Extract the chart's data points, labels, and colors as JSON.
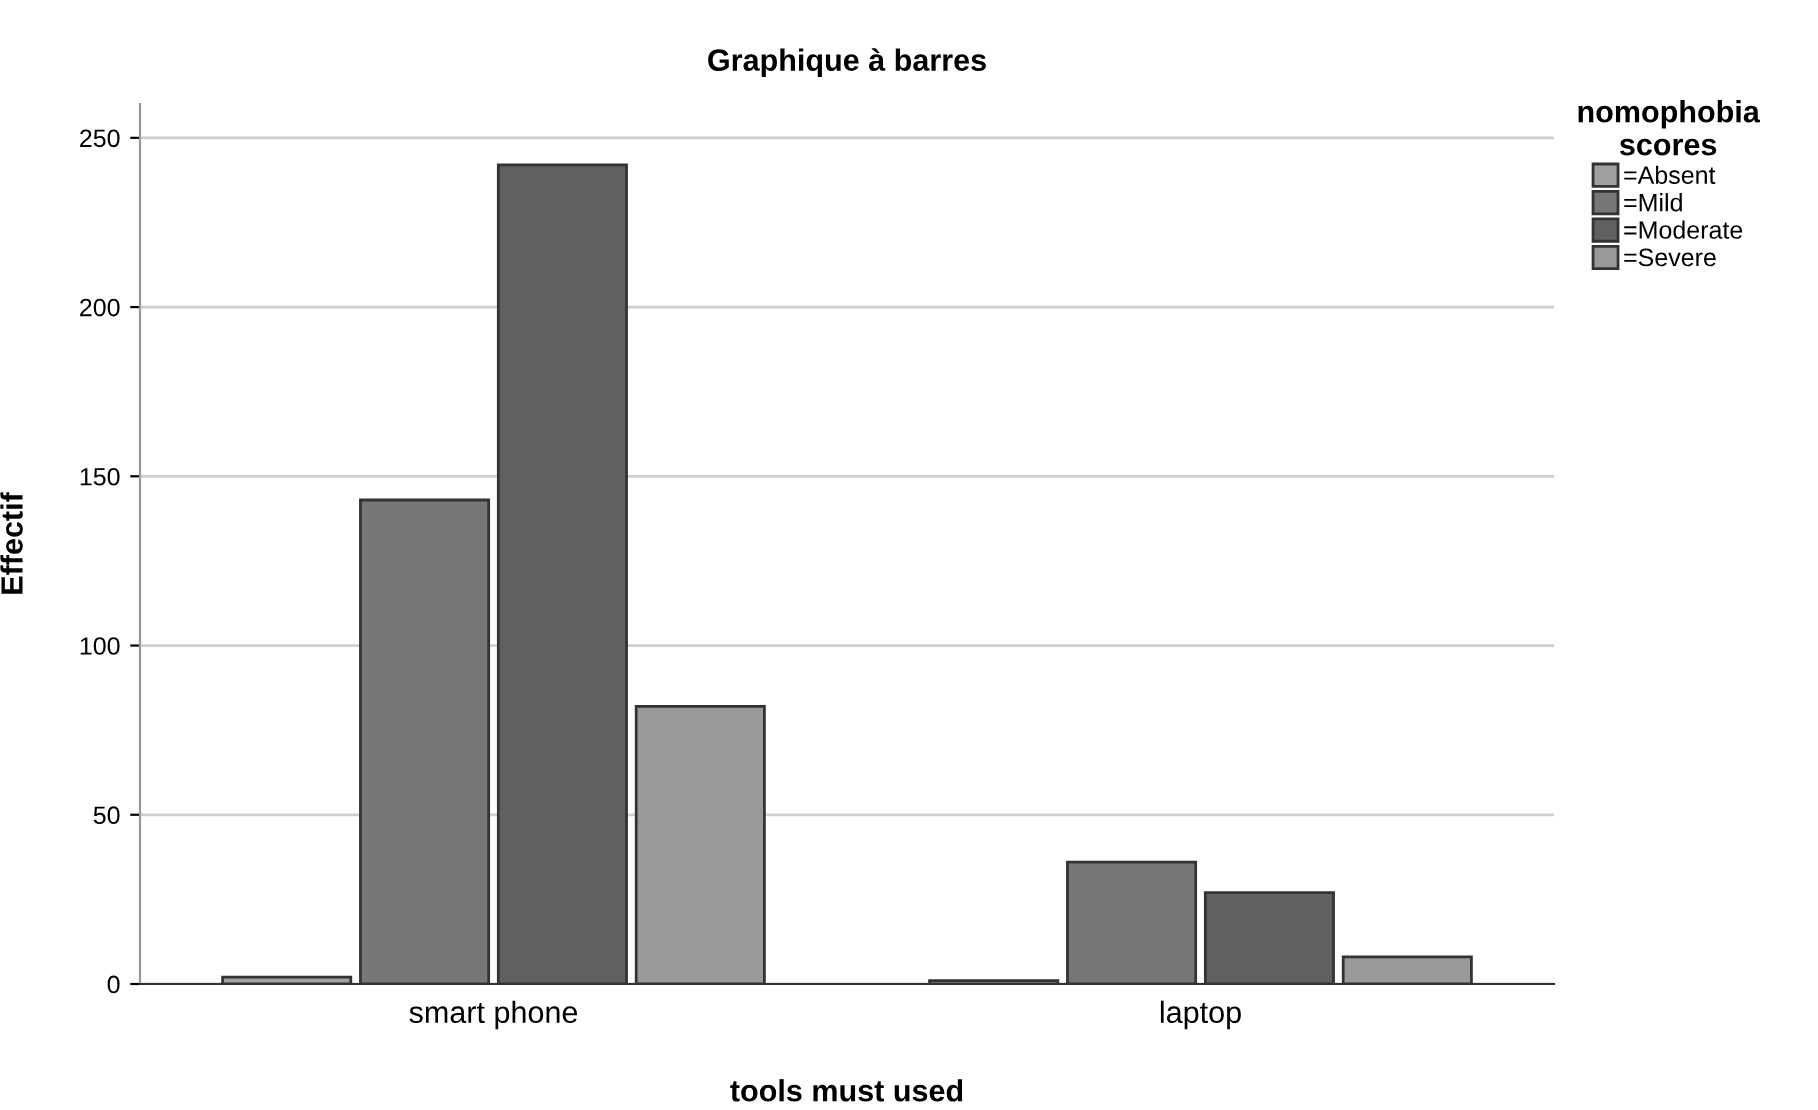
{
  "chart_data": {
    "type": "bar",
    "title": "Graphique à barres",
    "xlabel": "tools must used",
    "ylabel": "Effectif",
    "legend_title": "nomophobia\nscores",
    "categories": [
      "smart phone",
      "laptop"
    ],
    "series": [
      {
        "name": "=Absent",
        "color": "#a0a0a0",
        "values": [
          2,
          1
        ]
      },
      {
        "name": "=Mild",
        "color": "#777777",
        "values": [
          143,
          36
        ]
      },
      {
        "name": "=Moderate",
        "color": "#606060",
        "values": [
          242,
          27
        ]
      },
      {
        "name": "=Severe",
        "color": "#999999",
        "values": [
          82,
          8
        ]
      }
    ],
    "ylim": [
      0,
      260
    ],
    "yticks": [
      0,
      50,
      100,
      150,
      200,
      250
    ],
    "grid": "y",
    "legend": "top right"
  }
}
